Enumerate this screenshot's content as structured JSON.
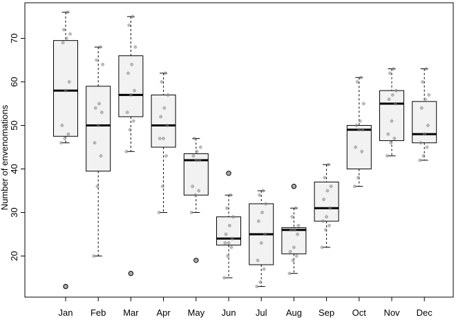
{
  "chart_data": {
    "type": "boxplot",
    "ylabel": "Number of envenomations",
    "xlabel": "",
    "title": "",
    "categories": [
      "Jan",
      "Feb",
      "Mar",
      "Apr",
      "May",
      "Jun",
      "Jul",
      "Aug",
      "Sep",
      "Oct",
      "Nov",
      "Dec"
    ],
    "y_ticks": [
      20,
      30,
      40,
      50,
      60,
      70
    ],
    "ylim": [
      11,
      79
    ],
    "box_fill": "#f2f2f2",
    "box_stroke": "#000000",
    "point_color": "#888888",
    "boxes": [
      {
        "month": "Jan",
        "whisker_low": 46,
        "q1": 47.5,
        "median": 58,
        "q3": 69.5,
        "whisker_high": 76,
        "outliers": [
          13
        ],
        "points": [
          46,
          47,
          48,
          50,
          58,
          60,
          69,
          70,
          71,
          72,
          76
        ]
      },
      {
        "month": "Feb",
        "whisker_low": 20,
        "q1": 39.5,
        "median": 50,
        "q3": 59,
        "whisker_high": 68,
        "outliers": [],
        "points": [
          20,
          36,
          43,
          46,
          50,
          53,
          54,
          55,
          64,
          65,
          68
        ]
      },
      {
        "month": "Mar",
        "whisker_low": 44,
        "q1": 52,
        "median": 57,
        "q3": 66,
        "whisker_high": 75,
        "outliers": [
          16
        ],
        "points": [
          44,
          49,
          51,
          53,
          57,
          58,
          62,
          64,
          68,
          73,
          75
        ]
      },
      {
        "month": "Apr",
        "whisker_low": 30,
        "q1": 45,
        "median": 50,
        "q3": 57,
        "whisker_high": 62,
        "outliers": [],
        "points": [
          30,
          36,
          43,
          47,
          47,
          50,
          52,
          54,
          57,
          60,
          62
        ]
      },
      {
        "month": "May",
        "whisker_low": 30,
        "q1": 34,
        "median": 42,
        "q3": 43.5,
        "whisker_high": 47,
        "outliers": [
          19
        ],
        "points": [
          30,
          34,
          35,
          36,
          42,
          42,
          43,
          44,
          45,
          47
        ]
      },
      {
        "month": "Jun",
        "whisker_low": 15,
        "q1": 22.5,
        "median": 24,
        "q3": 29,
        "whisker_high": 34,
        "outliers": [
          39
        ],
        "points": [
          15,
          20,
          22,
          23,
          23,
          24,
          25,
          27,
          29,
          31,
          34
        ]
      },
      {
        "month": "Jul",
        "whisker_low": 13,
        "q1": 18,
        "median": 25,
        "q3": 32,
        "whisker_high": 35,
        "outliers": [],
        "points": [
          13,
          14,
          17,
          19,
          23,
          25,
          28,
          30,
          32,
          34,
          35
        ]
      },
      {
        "month": "Aug",
        "whisker_low": 16,
        "q1": 20.5,
        "median": 26,
        "q3": 26.5,
        "whisker_high": 31,
        "outliers": [
          36
        ],
        "points": [
          16,
          19,
          20,
          21,
          22,
          25,
          26,
          26,
          27,
          29,
          31
        ]
      },
      {
        "month": "Sep",
        "whisker_low": 22,
        "q1": 28,
        "median": 31,
        "q3": 37,
        "whisker_high": 41,
        "outliers": [],
        "points": [
          22,
          26,
          27,
          28,
          29,
          31,
          33,
          35,
          36,
          38,
          41
        ]
      },
      {
        "month": "Oct",
        "whisker_low": 36,
        "q1": 40,
        "median": 49,
        "q3": 50,
        "whisker_high": 61,
        "outliers": [],
        "points": [
          36,
          38,
          44,
          45,
          49,
          49,
          50,
          51,
          55,
          60,
          61
        ]
      },
      {
        "month": "Nov",
        "whisker_low": 43,
        "q1": 46.5,
        "median": 55,
        "q3": 58,
        "whisker_high": 63,
        "outliers": [],
        "points": [
          43,
          46,
          47,
          48,
          51,
          55,
          56,
          57,
          58,
          62,
          63
        ]
      },
      {
        "month": "Dec",
        "whisker_low": 42,
        "q1": 46,
        "median": 48,
        "q3": 55.5,
        "whisker_high": 63,
        "outliers": [],
        "points": [
          42,
          43,
          45,
          46,
          48,
          50,
          54,
          56,
          57,
          60,
          63
        ]
      }
    ]
  }
}
